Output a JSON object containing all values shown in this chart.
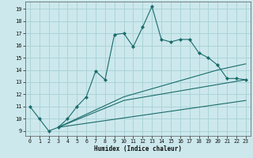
{
  "title": "",
  "xlabel": "Humidex (Indice chaleur)",
  "background_color": "#cce8ec",
  "grid_color": "#aad4d8",
  "line_color": "#1a6b6b",
  "xlim": [
    -0.5,
    23.5
  ],
  "ylim": [
    8.6,
    19.6
  ],
  "xticks": [
    0,
    1,
    2,
    3,
    4,
    5,
    6,
    7,
    8,
    9,
    10,
    11,
    12,
    13,
    14,
    15,
    16,
    17,
    18,
    19,
    20,
    21,
    22,
    23
  ],
  "yticks": [
    9,
    10,
    11,
    12,
    13,
    14,
    15,
    16,
    17,
    18,
    19
  ],
  "lines": [
    {
      "x": [
        0,
        1,
        2,
        3,
        4,
        5,
        6,
        7,
        8,
        9,
        10,
        11,
        12,
        13,
        14,
        15,
        16,
        17,
        18,
        19,
        20,
        21,
        22,
        23
      ],
      "y": [
        11,
        10,
        9,
        9.3,
        10.0,
        11.0,
        11.8,
        13.9,
        13.2,
        16.9,
        17.0,
        15.9,
        17.5,
        19.2,
        16.5,
        16.3,
        16.5,
        16.5,
        15.4,
        15.0,
        14.4,
        13.3,
        13.3,
        13.2
      ],
      "markers": true
    },
    {
      "x": [
        3,
        23
      ],
      "y": [
        9.3,
        11.5
      ],
      "markers": false
    },
    {
      "x": [
        3,
        10,
        23
      ],
      "y": [
        9.3,
        11.5,
        13.2
      ],
      "markers": false
    },
    {
      "x": [
        3,
        10,
        20,
        23
      ],
      "y": [
        9.3,
        11.8,
        14.0,
        14.5
      ],
      "markers": false
    }
  ]
}
